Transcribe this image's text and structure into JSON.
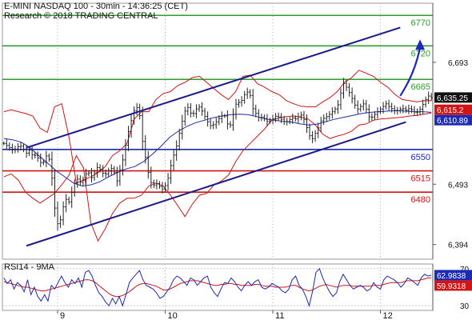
{
  "chart_data": [
    {
      "type": "line",
      "chart_subtype": "candlestick-with-annotations",
      "title": "E-MINI NASDAQ 100 - 30min - 14:36:25 (CET)",
      "subtitle": "Research © 2018 TRADING CENTRAL",
      "x_labels": [
        {
          "label": "9",
          "bar": 19
        },
        {
          "label": "10",
          "bar": 57
        },
        {
          "label": "11",
          "bar": 95
        },
        {
          "label": "12",
          "bar": 133
        }
      ],
      "bar_count": 152,
      "y_ticks": [
        6394,
        6493,
        6693
      ],
      "ylim": [
        6370,
        6790
      ],
      "grid": "vertical dotted at day boundaries",
      "levels": [
        {
          "value": 6770,
          "label": "6770",
          "color": "#2e9e2e"
        },
        {
          "value": 6720,
          "label": "6720",
          "color": "#2e9e2e"
        },
        {
          "value": 6665,
          "label": "6665",
          "color": "#2e9e2e"
        },
        {
          "value": 6550,
          "label": "6550",
          "color": "#1c2bb5"
        },
        {
          "value": 6515,
          "label": "6515",
          "color": "#d21414"
        },
        {
          "value": 6480,
          "label": "6480",
          "color": "#d21414"
        }
      ],
      "price_tags": [
        {
          "value": 6635.25,
          "label": "6,635.25",
          "bg": "#111111",
          "fg": "#ffffff"
        },
        {
          "value": 6615.2,
          "label": "6,615.2",
          "bg": "#d21414",
          "fg": "#ffffff"
        },
        {
          "value": 6610.89,
          "label": "6,610.89",
          "bg": "#1c2bb5",
          "fg": "#ffffff"
        }
      ],
      "channel": {
        "upper": [
          {
            "bar": 8,
            "y": 6553
          },
          {
            "bar": 140,
            "y": 6750
          }
        ],
        "lower": [
          {
            "bar": 8,
            "y": 6392
          },
          {
            "bar": 142,
            "y": 6595
          }
        ],
        "color": "#1a1a8c"
      },
      "forecast_arrow": {
        "from": {
          "bar": 140,
          "y": 6638
        },
        "to": {
          "bar": 147,
          "y": 6728
        },
        "color": "#1c2bb5"
      },
      "price": [
        6560,
        6556,
        6552,
        6548,
        6553,
        6557,
        6551,
        6544,
        6550,
        6538,
        6542,
        6530,
        6526,
        6540,
        6534,
        6498,
        6438,
        6422,
        6448,
        6470,
        6462,
        6480,
        6497,
        6503,
        6492,
        6508,
        6514,
        6503,
        6512,
        6522,
        6516,
        6508,
        6512,
        6520,
        6514,
        6498,
        6520,
        6538,
        6570,
        6590,
        6612,
        6620,
        6605,
        6555,
        6530,
        6500,
        6490,
        6495,
        6490,
        6485,
        6492,
        6508,
        6535,
        6548,
        6572,
        6595,
        6614,
        6620,
        6605,
        6612,
        6622,
        6615,
        6605,
        6595,
        6588,
        6592,
        6598,
        6604,
        6608,
        6592,
        6590,
        6612,
        6630,
        6625,
        6638,
        6645,
        6640,
        6615,
        6608,
        6600,
        6605,
        6595,
        6598,
        6600,
        6605,
        6603,
        6598,
        6594,
        6598,
        6602,
        6600,
        6604,
        6607,
        6595,
        6578,
        6565,
        6575,
        6585,
        6598,
        6602,
        6605,
        6610,
        6615,
        6620,
        6642,
        6660,
        6650,
        6640,
        6628,
        6615,
        6620,
        6625,
        6615,
        6600,
        6605,
        6610,
        6615,
        6620,
        6625,
        6620,
        6616,
        6612,
        6615,
        6618,
        6614,
        6617,
        6615,
        6610,
        6612,
        6620,
        6630,
        6638,
        6635
      ],
      "bollinger_upper": [
        6612,
        6615,
        6612,
        6609,
        6605,
        6585,
        6578,
        6620,
        6625,
        6570,
        6495,
        6500,
        6505,
        6512,
        6522,
        6540,
        6548,
        6560,
        6600,
        6612,
        6612,
        6632,
        6642,
        6645,
        6655,
        6660,
        6668,
        6670,
        6660,
        6650,
        6640,
        6632,
        6645,
        6670,
        6672,
        6658,
        6652,
        6645,
        6640,
        6630,
        6625,
        6621,
        6620,
        6620,
        6628,
        6635,
        6645,
        6660,
        6668,
        6680,
        6675,
        6670,
        6660,
        6652,
        6640,
        6632,
        6630,
        6628,
        6630,
        6630
      ],
      "bollinger_lower": [
        6505,
        6510,
        6500,
        6480,
        6470,
        6462,
        6470,
        6478,
        6492,
        6508,
        6540,
        6520,
        6430,
        6400,
        6420,
        6445,
        6462,
        6470,
        6470,
        6475,
        6490,
        6495,
        6490,
        6475,
        6458,
        6440,
        6460,
        6475,
        6478,
        6492,
        6498,
        6508,
        6530,
        6548,
        6560,
        6572,
        6584,
        6598,
        6602,
        6604,
        6605,
        6603,
        6600,
        6590,
        6575,
        6568,
        6572,
        6575,
        6580,
        6590,
        6592,
        6598,
        6600,
        6601,
        6602,
        6603,
        6605,
        6606,
        6608,
        6610
      ],
      "moving_average": [
        6568,
        6566,
        6562,
        6553,
        6540,
        6528,
        6515,
        6505,
        6495,
        6490,
        6492,
        6497,
        6505,
        6512,
        6518,
        6522,
        6530,
        6542,
        6555,
        6570,
        6580,
        6588,
        6594,
        6598,
        6602,
        6605,
        6607,
        6608,
        6607,
        6604,
        6600,
        6598,
        6596,
        6595,
        6592,
        6590,
        6592,
        6596,
        6600,
        6603,
        6606,
        6609,
        6611,
        6612,
        6613,
        6614,
        6613,
        6612,
        6612,
        6611
      ],
      "indicator": {
        "title": "RSI14 - 9MA",
        "ylim": [
          25,
          75
        ],
        "y_ticks": [
          30,
          70
        ],
        "tags": [
          {
            "value": 62.9838,
            "label": "62.9838",
            "bg": "#1c2bb5",
            "fg": "#ffffff"
          },
          {
            "value": 59.9318,
            "label": "59.9318",
            "bg": "#d21414",
            "fg": "#ffffff"
          }
        ],
        "rsi": [
          60,
          54,
          58,
          48,
          55,
          52,
          45,
          58,
          42,
          50,
          40,
          35,
          42,
          35,
          52,
          48,
          55,
          62,
          55,
          50,
          58,
          54,
          60,
          50,
          66,
          68,
          62,
          52,
          44,
          40,
          34,
          30,
          38,
          32,
          40,
          30,
          42,
          55,
          60,
          64,
          68,
          58,
          52,
          50,
          48,
          44,
          38,
          40,
          45,
          50,
          58,
          62,
          60,
          56,
          52,
          60,
          58,
          52,
          56,
          60,
          62,
          50,
          44,
          40,
          48,
          55,
          54,
          60,
          56,
          50,
          46,
          52,
          56,
          52,
          56,
          58,
          50,
          48,
          50,
          54,
          52,
          50,
          46,
          44,
          48,
          58,
          62,
          52,
          48,
          40,
          30,
          46,
          66,
          70,
          60,
          52,
          45,
          40,
          44,
          56,
          64,
          58,
          52,
          48,
          50,
          52,
          50,
          46,
          48,
          55,
          50,
          48,
          58,
          62,
          60,
          58,
          55,
          50,
          54,
          60,
          58,
          55,
          52,
          60,
          64,
          62,
          63
        ],
        "ma": [
          56,
          55,
          54,
          53,
          52,
          51,
          50,
          50,
          49,
          48,
          47,
          46,
          46,
          47,
          48,
          49,
          50,
          51,
          52,
          53,
          54,
          55,
          56,
          57,
          58,
          58,
          57,
          55,
          52,
          49,
          46,
          43,
          41,
          40,
          40,
          41,
          43,
          45,
          48,
          51,
          53,
          54,
          54,
          53,
          52,
          51,
          49,
          47,
          47,
          48,
          50,
          52,
          54,
          55,
          56,
          57,
          57,
          57,
          56,
          55,
          54,
          53,
          52,
          52,
          53,
          53,
          54,
          54,
          53,
          53,
          52,
          52,
          52,
          52,
          53,
          53,
          52,
          51,
          51,
          51,
          50,
          50,
          50,
          50,
          51,
          52,
          52,
          50,
          48,
          47,
          46,
          47,
          49,
          51,
          52,
          53,
          52,
          51,
          50,
          51,
          52,
          52,
          52,
          51,
          51,
          51,
          51,
          51,
          51,
          52,
          52,
          52,
          53,
          54,
          55,
          55,
          55,
          55,
          56,
          57,
          57,
          57,
          57,
          58,
          59,
          60,
          60
        ]
      }
    }
  ]
}
